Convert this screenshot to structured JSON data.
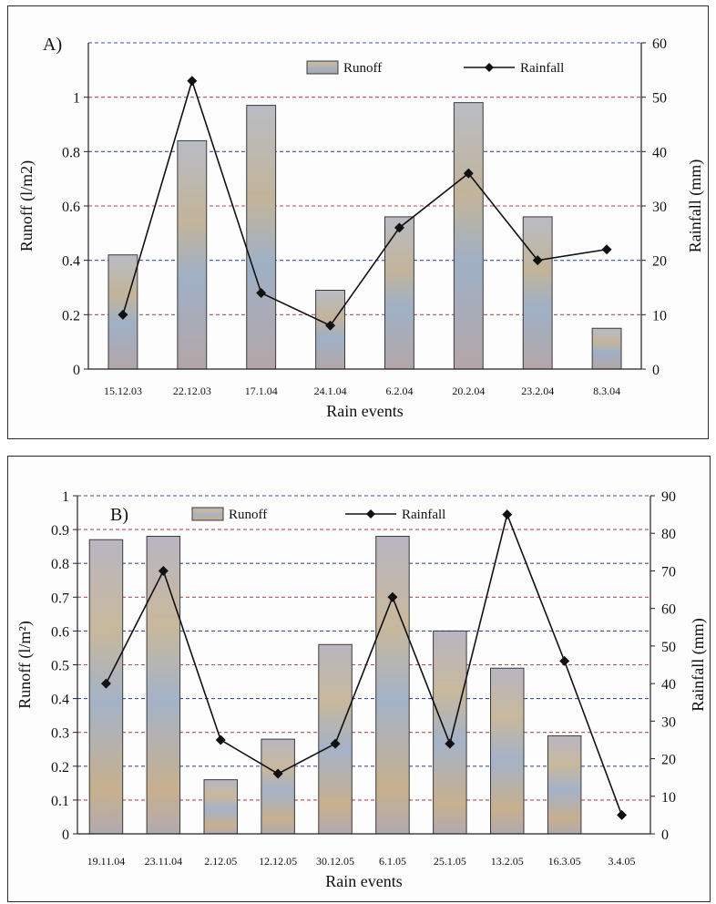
{
  "chart_data": [
    {
      "type": "bar+line",
      "panel_label": "A)",
      "xlabel": "Rain events",
      "ylabel": "Runoff (l/m2)",
      "y2label": "Rainfall (mm)",
      "categories": [
        "15.12.03",
        "22.12.03",
        "17.1.04",
        "24.1.04",
        "6.2.04",
        "20.2.04",
        "23.2.04",
        "8.3.04"
      ],
      "series": [
        {
          "name": "Runoff",
          "kind": "bar",
          "axis": "left",
          "values": [
            0.42,
            0.84,
            0.97,
            0.29,
            0.56,
            0.98,
            0.56,
            0.15
          ]
        },
        {
          "name": "Rainfall",
          "kind": "line",
          "axis": "right",
          "values": [
            10,
            53,
            14,
            8,
            26,
            36,
            20,
            22
          ]
        }
      ],
      "ylim": [
        0,
        1.2
      ],
      "yticks": [
        "0",
        "0.2",
        "0.4",
        "0.6",
        "0.8",
        "1"
      ],
      "y2lim": [
        0,
        60
      ],
      "y2ticks": [
        "0",
        "10",
        "20",
        "30",
        "40",
        "50",
        "60"
      ],
      "grid": true,
      "legend": "top"
    },
    {
      "type": "bar+line",
      "panel_label": "B)",
      "xlabel": "Rain events",
      "ylabel": "Runoff (l/m²)",
      "y2label": "Rainfall (mm)",
      "categories": [
        "19.11.04",
        "23.11.04",
        "2.12.05",
        "12.12.05",
        "30.12.05",
        "6.1.05",
        "25.1.05",
        "13.2.05",
        "16.3.05",
        "3.4.05"
      ],
      "series": [
        {
          "name": "Runoff",
          "kind": "bar",
          "axis": "left",
          "values": [
            0.87,
            0.88,
            0.16,
            0.28,
            0.56,
            0.88,
            0.6,
            0.49,
            0.29,
            0
          ]
        },
        {
          "name": "Rainfall",
          "kind": "line",
          "axis": "right",
          "values": [
            40,
            70,
            25,
            16,
            24,
            63,
            24,
            85,
            46,
            5
          ]
        }
      ],
      "ylim": [
        0,
        1
      ],
      "yticks": [
        "0",
        "0.1",
        "0.2",
        "0.3",
        "0.4",
        "0.5",
        "0.6",
        "0.7",
        "0.8",
        "0.9",
        "1"
      ],
      "y2lim": [
        0,
        90
      ],
      "y2ticks": [
        "0",
        "10",
        "20",
        "30",
        "40",
        "50",
        "60",
        "70",
        "80",
        "90"
      ],
      "grid": true,
      "legend": "top"
    }
  ],
  "colors": {
    "bar_fill": "#a8aab8",
    "bar_stroke": "#3a3a3a",
    "line": "#111111",
    "grid_blue": "#3a50a8",
    "grid_red": "#b05050"
  }
}
